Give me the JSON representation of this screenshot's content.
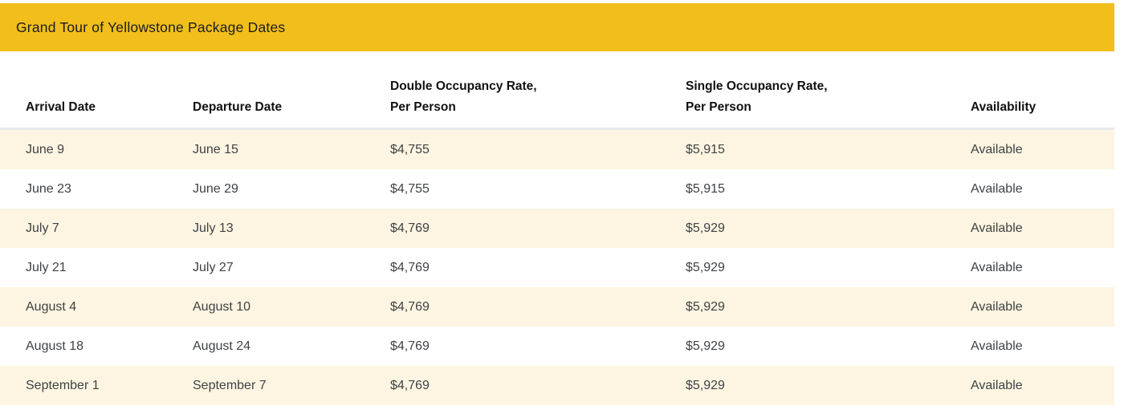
{
  "header": {
    "title": "Grand Tour of Yellowstone Package Dates"
  },
  "table": {
    "columns": [
      "Arrival Date",
      "Departure Date",
      "Double Occupancy Rate,\nPer Person",
      "Single Occupancy Rate,\nPer Person",
      "Availability"
    ],
    "column_keys": [
      "arrival",
      "departure",
      "double_rate",
      "single_rate",
      "availability"
    ],
    "rows": [
      {
        "arrival": "June 9",
        "departure": "June 15",
        "double_rate": "$4,755",
        "single_rate": "$5,915",
        "availability": "Available"
      },
      {
        "arrival": "June 23",
        "departure": "June 29",
        "double_rate": "$4,755",
        "single_rate": "$5,915",
        "availability": "Available"
      },
      {
        "arrival": "July 7",
        "departure": "July 13",
        "double_rate": "$4,769",
        "single_rate": "$5,929",
        "availability": "Available"
      },
      {
        "arrival": "July 21",
        "departure": "July 27",
        "double_rate": "$4,769",
        "single_rate": "$5,929",
        "availability": "Available"
      },
      {
        "arrival": "August 4",
        "departure": "August 10",
        "double_rate": "$4,769",
        "single_rate": "$5,929",
        "availability": "Available"
      },
      {
        "arrival": "August 18",
        "departure": "August 24",
        "double_rate": "$4,769",
        "single_rate": "$5,929",
        "availability": "Available"
      },
      {
        "arrival": "September 1",
        "departure": "September 7",
        "double_rate": "$4,769",
        "single_rate": "$5,929",
        "availability": "Available"
      }
    ]
  },
  "colors": {
    "banner_background": "#F2BE1B",
    "stripe_background": "#FDF5E1",
    "header_border": "#E8EAED",
    "header_text": "#111111",
    "body_text": "#3f4245",
    "title_text": "#1c1c1c"
  }
}
